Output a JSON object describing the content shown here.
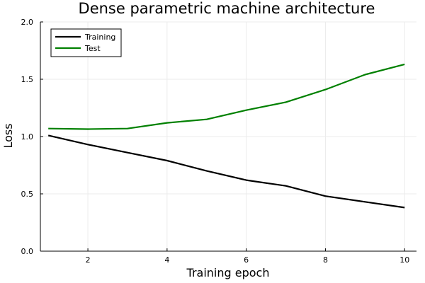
{
  "chart_data": {
    "type": "line",
    "title": "Dense parametric machine architecture",
    "xlabel": "Training epoch",
    "ylabel": "Loss",
    "xlim": [
      0.8,
      10.3
    ],
    "ylim": [
      0,
      2
    ],
    "xticks": [
      2,
      4,
      6,
      8,
      10
    ],
    "xtick_labels": [
      "2",
      "4",
      "6",
      "8",
      "10"
    ],
    "yticks": [
      0,
      0.5,
      1.0,
      1.5,
      2.0
    ],
    "ytick_labels": [
      "0.0",
      "0.5",
      "1.0",
      "1.5",
      "2.0"
    ],
    "grid": true,
    "legend_position": "top-left",
    "x": [
      1,
      2,
      3,
      4,
      5,
      6,
      7,
      8,
      9,
      10
    ],
    "series": [
      {
        "name": "Training",
        "color": "#000000",
        "values": [
          1.01,
          0.93,
          0.86,
          0.79,
          0.7,
          0.62,
          0.57,
          0.48,
          0.43,
          0.38
        ]
      },
      {
        "name": "Test",
        "color": "#008000",
        "values": [
          1.07,
          1.065,
          1.07,
          1.12,
          1.15,
          1.23,
          1.3,
          1.41,
          1.54,
          1.63
        ]
      }
    ]
  }
}
